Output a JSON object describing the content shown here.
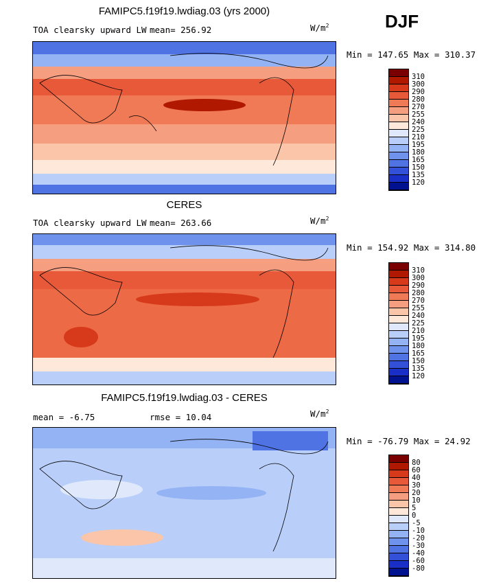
{
  "season": "DJF",
  "panels": [
    {
      "title": "FAMIPC5.f19f19.lwdiag.03 (yrs 2000)",
      "left_label": "TOA clearsky upward LW",
      "mean_label": "mean= 256.92",
      "units": "W/m",
      "units_sup": "2",
      "minmax": "Min = 147.65 Max = 310.37",
      "colorbar": {
        "labels": [
          "310",
          "300",
          "290",
          "280",
          "270",
          "255",
          "240",
          "225",
          "210",
          "195",
          "180",
          "165",
          "150",
          "135",
          "120"
        ],
        "colors": [
          "#7a0000",
          "#b01800",
          "#d63a1a",
          "#e8593a",
          "#f07a55",
          "#f59f80",
          "#fac5a8",
          "#fde8da",
          "#dfe9fb",
          "#b9cffa",
          "#94b3f4",
          "#6f93ec",
          "#4f73e3",
          "#3351d8",
          "#1a2fc7",
          "#00128f"
        ]
      },
      "fill": "#ef7a55"
    },
    {
      "title": "CERES",
      "left_label": "TOA clearsky upward LW",
      "mean_label": "mean= 263.66",
      "units": "W/m",
      "units_sup": "2",
      "minmax": "Min = 154.92 Max = 314.80",
      "colorbar": {
        "labels": [
          "310",
          "300",
          "290",
          "280",
          "270",
          "255",
          "240",
          "225",
          "210",
          "195",
          "180",
          "165",
          "150",
          "135",
          "120"
        ],
        "colors": [
          "#7a0000",
          "#b01800",
          "#d63a1a",
          "#e8593a",
          "#f07a55",
          "#f59f80",
          "#fac5a8",
          "#fde8da",
          "#dfe9fb",
          "#b9cffa",
          "#94b3f4",
          "#6f93ec",
          "#4f73e3",
          "#3351d8",
          "#1a2fc7",
          "#00128f"
        ]
      },
      "fill": "#ec6a45"
    },
    {
      "title": "FAMIPC5.f19f19.lwdiag.03 - CERES",
      "left_label": "mean =   -6.75",
      "mean_label": "rmse =  10.04",
      "units": "W/m",
      "units_sup": "2",
      "minmax": "Min = -76.79 Max =  24.92",
      "colorbar": {
        "labels": [
          "80",
          "60",
          "40",
          "30",
          "20",
          "10",
          "5",
          "0",
          "-5",
          "-10",
          "-20",
          "-30",
          "-40",
          "-60",
          "-80"
        ],
        "colors": [
          "#7a0000",
          "#b01800",
          "#d63a1a",
          "#e8593a",
          "#f07a55",
          "#f59f80",
          "#fac5a8",
          "#fde8da",
          "#dfe9fb",
          "#b9cffa",
          "#94b3f4",
          "#6f93ec",
          "#4f73e3",
          "#3351d8",
          "#1a2fc7",
          "#00128f"
        ]
      },
      "fill": "#b9cffa"
    }
  ]
}
